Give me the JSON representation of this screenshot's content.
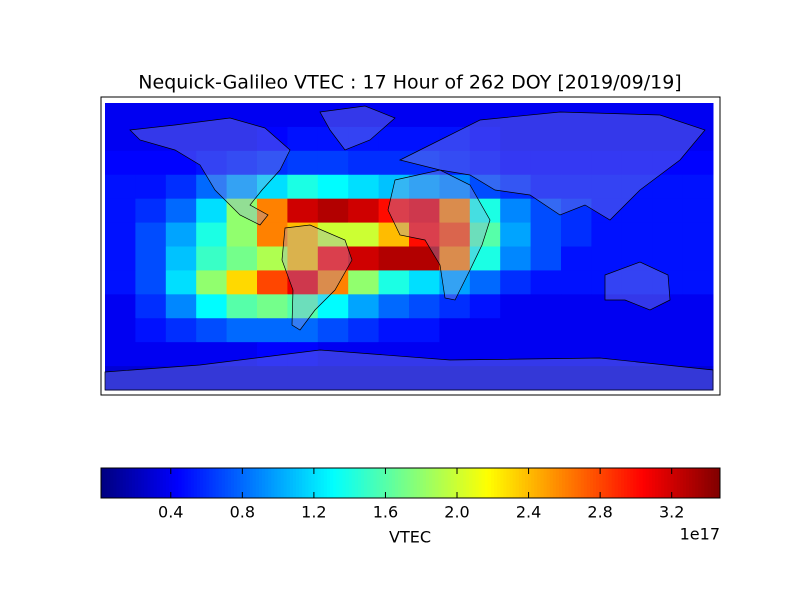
{
  "chart_data": {
    "type": "heatmap",
    "title": "Nequick-Galileo VTEC : 17 Hour of 262 DOY [2019/09/19]",
    "colormap": "jet",
    "values": [
      [
        0.4,
        0.4,
        0.4,
        0.4,
        0.4,
        0.4,
        0.4,
        0.4,
        0.4,
        0.4,
        0.4,
        0.4,
        0.4,
        0.4,
        0.4,
        0.4,
        0.4,
        0.4,
        0.4,
        0.4
      ],
      [
        0.4,
        0.4,
        0.4,
        0.4,
        0.4,
        0.45,
        0.5,
        0.5,
        0.5,
        0.5,
        0.5,
        0.5,
        0.45,
        0.4,
        0.4,
        0.4,
        0.4,
        0.4,
        0.4,
        0.4
      ],
      [
        0.45,
        0.45,
        0.45,
        0.5,
        0.55,
        0.6,
        0.65,
        0.65,
        0.6,
        0.6,
        0.6,
        0.55,
        0.5,
        0.45,
        0.45,
        0.45,
        0.45,
        0.45,
        0.45,
        0.45
      ],
      [
        0.5,
        0.5,
        0.6,
        0.8,
        1.0,
        1.2,
        1.4,
        1.3,
        1.2,
        1.1,
        1.0,
        0.9,
        0.7,
        0.6,
        0.5,
        0.5,
        0.5,
        0.5,
        0.5,
        0.5
      ],
      [
        0.5,
        0.6,
        0.8,
        1.2,
        1.8,
        2.6,
        3.2,
        3.3,
        3.2,
        3.0,
        3.1,
        2.6,
        1.4,
        0.9,
        0.7,
        0.6,
        0.5,
        0.5,
        0.5,
        0.5
      ],
      [
        0.5,
        0.7,
        1.0,
        1.4,
        1.8,
        2.6,
        2.4,
        2.0,
        2.0,
        2.4,
        3.0,
        2.8,
        1.6,
        1.0,
        0.7,
        0.6,
        0.5,
        0.5,
        0.5,
        0.5
      ],
      [
        0.5,
        0.7,
        1.1,
        1.5,
        1.7,
        1.9,
        2.4,
        3.0,
        3.2,
        3.3,
        3.3,
        2.6,
        1.4,
        0.9,
        0.7,
        0.5,
        0.5,
        0.5,
        0.5,
        0.5
      ],
      [
        0.5,
        0.7,
        1.2,
        1.8,
        2.3,
        2.8,
        3.1,
        2.6,
        1.8,
        1.4,
        1.2,
        1.0,
        0.8,
        0.6,
        0.5,
        0.5,
        0.5,
        0.5,
        0.5,
        0.5
      ],
      [
        0.4,
        0.6,
        0.9,
        1.3,
        1.6,
        1.7,
        1.6,
        1.3,
        1.0,
        0.8,
        0.7,
        0.6,
        0.5,
        0.4,
        0.4,
        0.4,
        0.4,
        0.4,
        0.4,
        0.4
      ],
      [
        0.4,
        0.5,
        0.6,
        0.7,
        0.8,
        0.8,
        0.8,
        0.7,
        0.6,
        0.5,
        0.5,
        0.4,
        0.4,
        0.4,
        0.4,
        0.4,
        0.4,
        0.4,
        0.4,
        0.4
      ],
      [
        0.4,
        0.4,
        0.4,
        0.4,
        0.4,
        0.45,
        0.45,
        0.4,
        0.4,
        0.4,
        0.4,
        0.4,
        0.4,
        0.4,
        0.4,
        0.4,
        0.4,
        0.4,
        0.4,
        0.4
      ],
      [
        0.3,
        0.3,
        0.3,
        0.3,
        0.3,
        0.3,
        0.3,
        0.3,
        0.3,
        0.3,
        0.3,
        0.3,
        0.3,
        0.3,
        0.3,
        0.3,
        0.3,
        0.3,
        0.3,
        0.3
      ]
    ],
    "colorbar": {
      "label": "VTEC",
      "offset_label": "1e17",
      "lim": [
        0.01,
        3.47
      ],
      "ticks": [
        0.4,
        0.8,
        1.2,
        1.6,
        {
          "value": 2,
          "label": "2.0"
        },
        2.4,
        2.8,
        3.2
      ]
    }
  }
}
